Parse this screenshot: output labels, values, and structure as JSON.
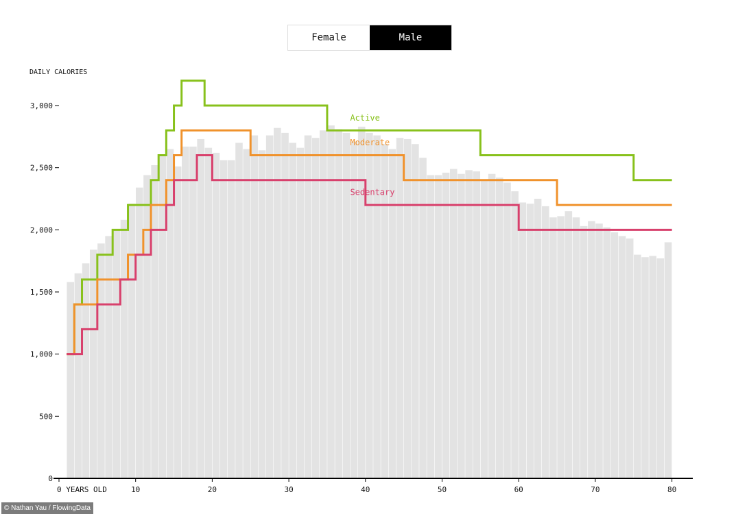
{
  "toggle": {
    "female_label": "Female",
    "male_label": "Male",
    "selected": "Male"
  },
  "credit": "© Nathan Yau / FlowingData",
  "chart_data": {
    "type": "bar",
    "title": "",
    "ylabel": "DAILY CALORIES",
    "xlabel": "",
    "xlim": [
      0,
      82
    ],
    "ylim": [
      0,
      3300
    ],
    "x_ticks": [
      {
        "value": 0,
        "label": "0 YEARS OLD"
      },
      {
        "value": 10,
        "label": "10"
      },
      {
        "value": 20,
        "label": "20"
      },
      {
        "value": 30,
        "label": "30"
      },
      {
        "value": 40,
        "label": "40"
      },
      {
        "value": 50,
        "label": "50"
      },
      {
        "value": 60,
        "label": "60"
      },
      {
        "value": 70,
        "label": "70"
      },
      {
        "value": 80,
        "label": "80"
      }
    ],
    "y_ticks": [
      {
        "value": 0,
        "label": "0"
      },
      {
        "value": 500,
        "label": "500"
      },
      {
        "value": 1000,
        "label": "1,000"
      },
      {
        "value": 1500,
        "label": "1,500"
      },
      {
        "value": 2000,
        "label": "2,000"
      },
      {
        "value": 2500,
        "label": "2,500"
      },
      {
        "value": 3000,
        "label": "3,000"
      }
    ],
    "bars": {
      "color": "#e3e3e3",
      "ages": [
        2,
        3,
        4,
        5,
        6,
        7,
        8,
        9,
        10,
        11,
        12,
        13,
        14,
        15,
        16,
        17,
        18,
        19,
        20,
        21,
        22,
        23,
        24,
        25,
        26,
        27,
        28,
        29,
        30,
        31,
        32,
        33,
        34,
        35,
        36,
        37,
        38,
        39,
        40,
        41,
        42,
        43,
        44,
        45,
        46,
        47,
        48,
        49,
        50,
        51,
        52,
        53,
        54,
        55,
        56,
        57,
        58,
        59,
        60,
        61,
        62,
        63,
        64,
        65,
        66,
        67,
        68,
        69,
        70,
        71,
        72,
        73,
        74,
        75,
        76,
        77,
        78,
        79,
        80
      ],
      "values": [
        1580,
        1650,
        1730,
        1840,
        1890,
        1950,
        2000,
        2080,
        2210,
        2340,
        2440,
        2520,
        2600,
        2650,
        2510,
        2670,
        2670,
        2730,
        2660,
        2620,
        2560,
        2560,
        2700,
        2650,
        2760,
        2640,
        2760,
        2820,
        2780,
        2700,
        2660,
        2760,
        2740,
        2800,
        2840,
        2810,
        2780,
        2710,
        2830,
        2780,
        2760,
        2690,
        2650,
        2740,
        2730,
        2690,
        2580,
        2440,
        2440,
        2460,
        2490,
        2450,
        2480,
        2470,
        2400,
        2450,
        2420,
        2380,
        2310,
        2220,
        2210,
        2250,
        2190,
        2100,
        2110,
        2150,
        2100,
        2030,
        2070,
        2050,
        2020,
        1980,
        1950,
        1930,
        1800,
        1780,
        1790,
        1770,
        1900
      ]
    },
    "series": [
      {
        "name": "Active",
        "color": "#88c11c",
        "steps": [
          [
            2,
            1000
          ],
          [
            3,
            1400
          ],
          [
            4,
            1600
          ],
          [
            6,
            1800
          ],
          [
            8,
            2000
          ],
          [
            10,
            2200
          ],
          [
            13,
            2400
          ],
          [
            14,
            2600
          ],
          [
            15,
            2800
          ],
          [
            16,
            3000
          ],
          [
            17,
            3200
          ],
          [
            20,
            3000
          ],
          [
            36,
            2800
          ],
          [
            56,
            2600
          ],
          [
            76,
            2400
          ],
          [
            80,
            2400
          ]
        ]
      },
      {
        "name": "Moderate",
        "color": "#f0922c",
        "steps": [
          [
            2,
            1000
          ],
          [
            3,
            1400
          ],
          [
            6,
            1600
          ],
          [
            10,
            1800
          ],
          [
            12,
            2000
          ],
          [
            13,
            2200
          ],
          [
            15,
            2400
          ],
          [
            16,
            2600
          ],
          [
            17,
            2800
          ],
          [
            26,
            2600
          ],
          [
            46,
            2400
          ],
          [
            66,
            2200
          ],
          [
            80,
            2200
          ]
        ]
      },
      {
        "name": "Sedentary",
        "color": "#d8406c",
        "steps": [
          [
            2,
            1000
          ],
          [
            4,
            1200
          ],
          [
            6,
            1400
          ],
          [
            9,
            1600
          ],
          [
            11,
            1800
          ],
          [
            13,
            2000
          ],
          [
            15,
            2200
          ],
          [
            16,
            2400
          ],
          [
            19,
            2600
          ],
          [
            21,
            2400
          ],
          [
            41,
            2200
          ],
          [
            61,
            2000
          ],
          [
            80,
            2000
          ]
        ]
      }
    ],
    "annotations": [
      {
        "series": "Active",
        "x": 38,
        "y": 2880
      },
      {
        "series": "Moderate",
        "x": 38,
        "y": 2680
      },
      {
        "series": "Sedentary",
        "x": 38,
        "y": 2280
      }
    ]
  }
}
